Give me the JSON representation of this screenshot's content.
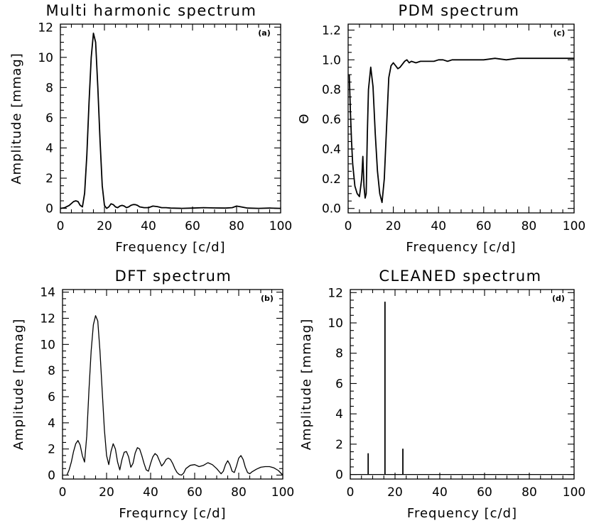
{
  "chart_data": [
    {
      "id": "a",
      "type": "line",
      "title": "Multi harmonic spectrum",
      "panel_tag": "(a)",
      "xlabel": "Frequency [c/d]",
      "ylabel": "Amplitude [mmag]",
      "xlim": [
        0,
        100
      ],
      "ylim": [
        -0.3,
        12.2
      ],
      "xticks": [
        0,
        20,
        40,
        60,
        80,
        100
      ],
      "yticks": [
        0,
        2,
        4,
        6,
        8,
        10,
        12
      ],
      "x": [
        0,
        2,
        4,
        6,
        7,
        8,
        9,
        10,
        11,
        12,
        13,
        14,
        15,
        16,
        17,
        18,
        19,
        20,
        21,
        22,
        23,
        24,
        25,
        26,
        27,
        28,
        29,
        30,
        31,
        32,
        33,
        34,
        35,
        36,
        38,
        40,
        42,
        44,
        46,
        48,
        50,
        55,
        60,
        65,
        70,
        75,
        78,
        80,
        82,
        85,
        90,
        95,
        100
      ],
      "y": [
        0.0,
        0.05,
        0.2,
        0.45,
        0.5,
        0.45,
        0.2,
        0.1,
        1.0,
        3.5,
        7.0,
        10.0,
        11.6,
        11.0,
        8.0,
        4.5,
        1.5,
        0.2,
        0.0,
        0.1,
        0.3,
        0.25,
        0.1,
        0.05,
        0.15,
        0.2,
        0.15,
        0.05,
        0.1,
        0.2,
        0.25,
        0.25,
        0.2,
        0.1,
        0.05,
        0.05,
        0.15,
        0.12,
        0.05,
        0.05,
        0.02,
        0.0,
        0.02,
        0.05,
        0.03,
        0.02,
        0.05,
        0.15,
        0.1,
        0.02,
        0.0,
        0.02,
        0.0
      ]
    },
    {
      "id": "b",
      "type": "line",
      "title": "DFT spectrum",
      "panel_tag": "(b)",
      "xlabel": "Frequrncy [c/d]",
      "ylabel": "Amplitude [mmag]",
      "xlim": [
        0,
        100
      ],
      "ylim": [
        -0.3,
        14.2
      ],
      "xticks": [
        0,
        20,
        40,
        60,
        80,
        100
      ],
      "yticks": [
        0,
        2,
        4,
        6,
        8,
        10,
        12,
        14
      ],
      "x": [
        2,
        3,
        4,
        5,
        6,
        7,
        8,
        9,
        10,
        11,
        12,
        13,
        14,
        15,
        16,
        17,
        18,
        19,
        20,
        21,
        22,
        23,
        24,
        25,
        26,
        27,
        28,
        29,
        30,
        31,
        32,
        33,
        34,
        35,
        36,
        37,
        38,
        39,
        40,
        41,
        42,
        43,
        44,
        45,
        46,
        47,
        48,
        49,
        50,
        51,
        52,
        53,
        54,
        55,
        56,
        58,
        60,
        62,
        64,
        66,
        68,
        70,
        71,
        72,
        73,
        74,
        75,
        76,
        77,
        78,
        79,
        80,
        81,
        82,
        83,
        84,
        85,
        86,
        88,
        90,
        92,
        94,
        96,
        98,
        100
      ],
      "y": [
        0.0,
        0.4,
        1.0,
        1.8,
        2.4,
        2.65,
        2.3,
        1.5,
        1.0,
        3.0,
        6.5,
        9.5,
        11.5,
        12.2,
        11.8,
        9.5,
        6.5,
        3.5,
        1.5,
        0.8,
        1.8,
        2.4,
        2.0,
        1.0,
        0.4,
        1.2,
        1.75,
        1.8,
        1.4,
        0.6,
        0.9,
        1.7,
        2.1,
        2.0,
        1.5,
        0.9,
        0.4,
        0.3,
        0.9,
        1.4,
        1.65,
        1.5,
        1.1,
        0.7,
        0.9,
        1.2,
        1.3,
        1.2,
        0.9,
        0.5,
        0.2,
        0.05,
        0.0,
        0.15,
        0.5,
        0.75,
        0.8,
        0.65,
        0.75,
        0.95,
        0.8,
        0.5,
        0.3,
        0.1,
        0.3,
        0.8,
        1.1,
        0.8,
        0.3,
        0.2,
        0.7,
        1.3,
        1.5,
        1.2,
        0.6,
        0.2,
        0.1,
        0.25,
        0.45,
        0.6,
        0.65,
        0.65,
        0.55,
        0.35,
        0.0
      ]
    },
    {
      "id": "c",
      "type": "line",
      "title": "PDM spectrum",
      "panel_tag": "(c)",
      "xlabel": "Frequency [c/d]",
      "ylabel": "Θ",
      "xlim": [
        0,
        100
      ],
      "ylim": [
        -0.03,
        1.24
      ],
      "xticks": [
        0,
        20,
        40,
        60,
        80,
        100
      ],
      "yticks": [
        0.0,
        0.2,
        0.4,
        0.6,
        0.8,
        1.0,
        1.2
      ],
      "ytick_labels": [
        "0.0",
        "0.2",
        "0.4",
        "0.6",
        "0.8",
        "1.0",
        "1.2"
      ],
      "x": [
        0.5,
        1,
        1.5,
        2,
        3,
        4,
        5,
        6,
        6.5,
        7,
        7.5,
        8,
        8.5,
        9,
        10,
        11,
        12,
        13,
        14,
        15,
        16,
        17,
        18,
        19,
        20,
        21,
        22,
        23,
        24,
        25,
        26,
        27,
        28,
        30,
        32,
        34,
        36,
        38,
        40,
        42,
        44,
        46,
        50,
        55,
        60,
        65,
        70,
        75,
        80,
        85,
        90,
        95,
        100
      ],
      "y": [
        0.9,
        0.65,
        0.45,
        0.3,
        0.15,
        0.1,
        0.08,
        0.2,
        0.35,
        0.15,
        0.07,
        0.1,
        0.5,
        0.8,
        0.95,
        0.82,
        0.5,
        0.25,
        0.1,
        0.04,
        0.2,
        0.55,
        0.88,
        0.96,
        0.98,
        0.96,
        0.94,
        0.95,
        0.97,
        0.99,
        1.0,
        0.98,
        0.99,
        0.98,
        0.99,
        0.99,
        0.99,
        0.99,
        1.0,
        1.0,
        0.99,
        1.0,
        1.0,
        1.0,
        1.0,
        1.01,
        1.0,
        1.01,
        1.01,
        1.01,
        1.01,
        1.01,
        1.01
      ]
    },
    {
      "id": "d",
      "type": "bar",
      "title": "CLEANED spectrum",
      "panel_tag": "(d)",
      "xlabel": "Frequency [c/d]",
      "ylabel": "Amplitude [mmag]",
      "xlim": [
        0,
        100
      ],
      "ylim": [
        -0.3,
        12.2
      ],
      "xticks": [
        0,
        20,
        40,
        60,
        80,
        100
      ],
      "yticks": [
        0,
        2,
        4,
        6,
        8,
        10,
        12
      ],
      "x": [
        8,
        15.5,
        23.5
      ],
      "y": [
        1.4,
        11.4,
        1.7
      ]
    }
  ]
}
